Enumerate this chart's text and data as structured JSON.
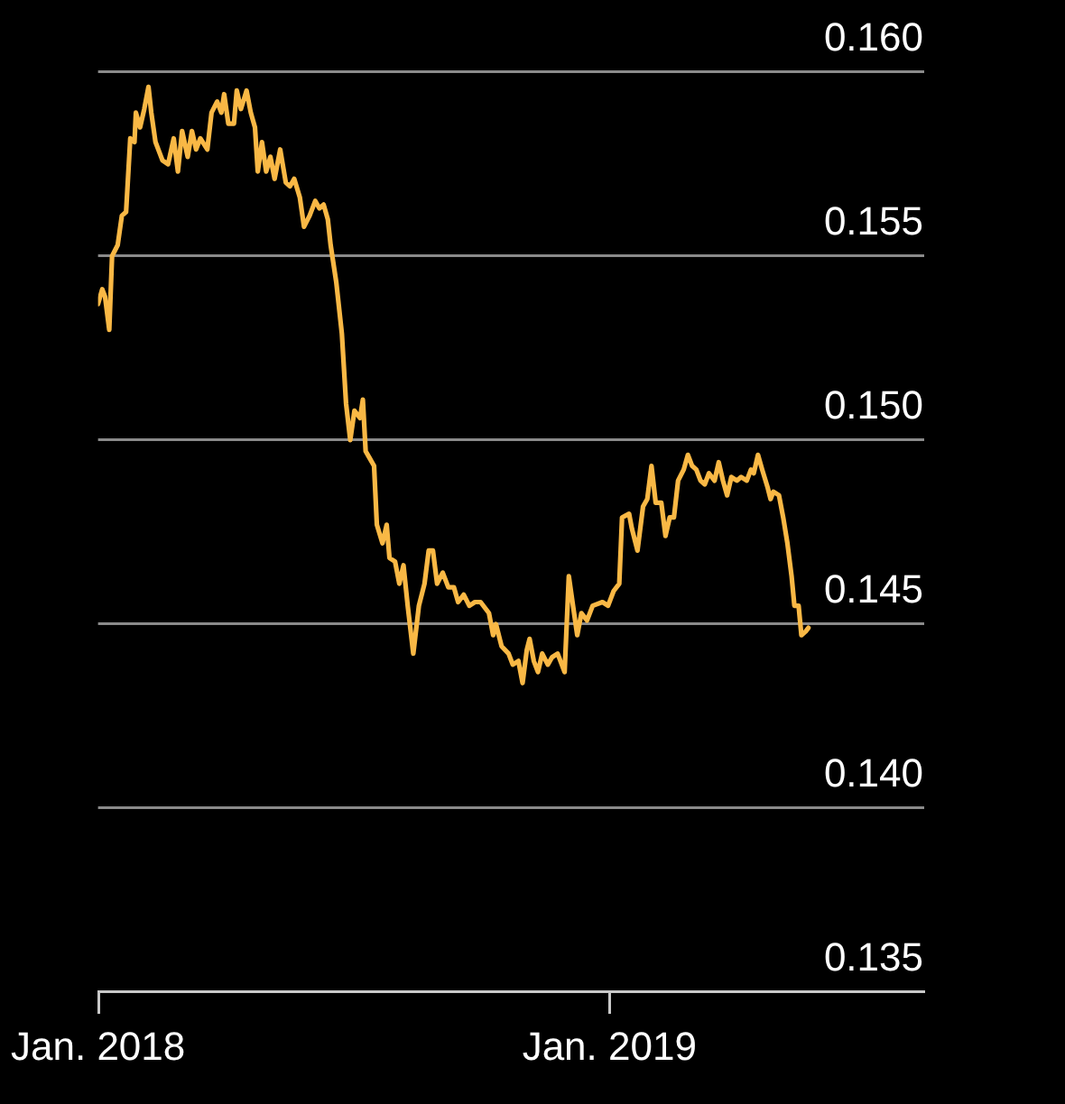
{
  "chart_data": {
    "type": "line",
    "x": [
      "2018-01-01",
      "2018-01-04",
      "2018-01-06",
      "2018-01-09",
      "2018-01-11",
      "2018-01-15",
      "2018-01-18",
      "2018-01-21",
      "2018-01-24",
      "2018-01-27",
      "2018-01-28",
      "2018-01-31",
      "2018-02-03",
      "2018-02-06",
      "2018-02-08",
      "2018-02-11",
      "2018-02-16",
      "2018-02-20",
      "2018-02-24",
      "2018-02-27",
      "2018-03-02",
      "2018-03-06",
      "2018-03-09",
      "2018-03-12",
      "2018-03-15",
      "2018-03-20",
      "2018-03-23",
      "2018-03-27",
      "2018-03-30",
      "2018-04-01",
      "2018-04-04",
      "2018-04-08",
      "2018-04-10",
      "2018-04-13",
      "2018-04-17",
      "2018-04-20",
      "2018-04-23",
      "2018-04-25",
      "2018-04-28",
      "2018-05-01",
      "2018-05-04",
      "2018-05-07",
      "2018-05-11",
      "2018-05-15",
      "2018-05-18",
      "2018-05-21",
      "2018-05-25",
      "2018-05-28",
      "2018-06-01",
      "2018-06-05",
      "2018-06-08",
      "2018-06-11",
      "2018-06-14",
      "2018-06-16",
      "2018-06-20",
      "2018-06-24",
      "2018-06-27",
      "2018-06-30",
      "2018-07-03",
      "2018-07-07",
      "2018-07-09",
      "2018-07-11",
      "2018-07-14",
      "2018-07-17",
      "2018-07-19",
      "2018-07-23",
      "2018-07-26",
      "2018-07-28",
      "2018-08-01",
      "2018-08-04",
      "2018-08-07",
      "2018-08-10",
      "2018-08-14",
      "2018-08-18",
      "2018-08-22",
      "2018-08-25",
      "2018-08-28",
      "2018-08-31",
      "2018-09-04",
      "2018-09-08",
      "2018-09-12",
      "2018-09-15",
      "2018-09-19",
      "2018-09-23",
      "2018-09-27",
      "2018-10-01",
      "2018-10-07",
      "2018-10-10",
      "2018-10-12",
      "2018-10-16",
      "2018-10-21",
      "2018-10-24",
      "2018-10-28",
      "2018-10-31",
      "2018-11-03",
      "2018-11-05",
      "2018-11-08",
      "2018-11-11",
      "2018-11-14",
      "2018-11-18",
      "2018-11-21",
      "2018-11-25",
      "2018-11-28",
      "2018-11-30",
      "2018-12-03",
      "2018-12-06",
      "2018-12-09",
      "2018-12-12",
      "2018-12-16",
      "2018-12-20",
      "2018-12-27",
      "2018-12-31",
      "2019-01-04",
      "2019-01-08",
      "2019-01-10",
      "2019-01-15",
      "2019-01-17",
      "2019-01-21",
      "2019-01-25",
      "2019-01-28",
      "2019-01-31",
      "2019-02-03",
      "2019-02-07",
      "2019-02-10",
      "2019-02-13",
      "2019-02-16",
      "2019-02-19",
      "2019-02-23",
      "2019-02-26",
      "2019-03-01",
      "2019-03-04",
      "2019-03-07",
      "2019-03-10",
      "2019-03-13",
      "2019-03-17",
      "2019-03-20",
      "2019-03-23",
      "2019-03-26",
      "2019-03-29",
      "2019-04-02",
      "2019-04-05",
      "2019-04-09",
      "2019-04-12",
      "2019-04-14",
      "2019-04-17",
      "2019-04-20",
      "2019-04-24",
      "2019-04-26",
      "2019-04-28",
      "2019-05-02",
      "2019-05-05",
      "2019-05-08",
      "2019-05-11",
      "2019-05-13",
      "2019-05-16",
      "2019-05-18",
      "2019-05-21",
      "2019-05-23"
    ],
    "values": [
      0.1537,
      0.1541,
      0.1539,
      0.153,
      0.155,
      0.1553,
      0.1561,
      0.1562,
      0.1582,
      0.1581,
      0.1589,
      0.1585,
      0.159,
      0.1596,
      0.1589,
      0.1581,
      0.1576,
      0.1575,
      0.1582,
      0.1573,
      0.1584,
      0.1577,
      0.1584,
      0.1579,
      0.1582,
      0.1579,
      0.1589,
      0.1592,
      0.1589,
      0.1594,
      0.1586,
      0.1586,
      0.1595,
      0.159,
      0.1595,
      0.1589,
      0.1585,
      0.1573,
      0.1581,
      0.1573,
      0.1577,
      0.1571,
      0.1579,
      0.157,
      0.1569,
      0.1571,
      0.1566,
      0.1558,
      0.1561,
      0.1565,
      0.1563,
      0.1564,
      0.156,
      0.1553,
      0.1543,
      0.1529,
      0.151,
      0.15,
      0.1508,
      0.1506,
      0.1511,
      0.1497,
      0.1495,
      0.1493,
      0.1477,
      0.1472,
      0.1477,
      0.1468,
      0.1467,
      0.1461,
      0.1466,
      0.1455,
      0.1442,
      0.1455,
      0.1461,
      0.147,
      0.147,
      0.1461,
      0.1464,
      0.146,
      0.146,
      0.1456,
      0.1458,
      0.1455,
      0.1456,
      0.1456,
      0.1453,
      0.1447,
      0.145,
      0.1444,
      0.1442,
      0.1439,
      0.144,
      0.1434,
      0.1443,
      0.1446,
      0.144,
      0.1437,
      0.1442,
      0.1439,
      0.1441,
      0.1442,
      0.1439,
      0.1437,
      0.1463,
      0.1455,
      0.1447,
      0.1453,
      0.1451,
      0.1455,
      0.1456,
      0.1455,
      0.1459,
      0.1461,
      0.1479,
      0.148,
      0.1476,
      0.147,
      0.1482,
      0.1484,
      0.1493,
      0.1483,
      0.1483,
      0.1474,
      0.1479,
      0.1479,
      0.1489,
      0.1492,
      0.1496,
      0.1493,
      0.1492,
      0.1489,
      0.1488,
      0.1491,
      0.1489,
      0.1494,
      0.1489,
      0.1485,
      0.149,
      0.1489,
      0.149,
      0.1489,
      0.1492,
      0.1491,
      0.1496,
      0.1492,
      0.1487,
      0.1484,
      0.1486,
      0.1485,
      0.1479,
      0.1472,
      0.1463,
      0.1455,
      0.1455,
      0.1447,
      0.1448,
      0.1449
    ],
    "color": "#f9b845",
    "xlim": [
      "2018-01-01",
      "2019-08-13"
    ],
    "xticks": [
      {
        "value": "2018-01-01",
        "label": "Jan. 2018"
      },
      {
        "value": "2019-01-01",
        "label": "Jan. 2019"
      }
    ],
    "ylim": [
      0.135,
      0.16
    ],
    "yticks": [
      0.135,
      {
        "value": 0.14,
        "label": "0.140"
      },
      0.145,
      {
        "value": 0.15,
        "label": "0.150"
      },
      0.155,
      {
        "value": 0.16,
        "label": "0.160"
      }
    ],
    "grid": "y",
    "legend": false
  }
}
